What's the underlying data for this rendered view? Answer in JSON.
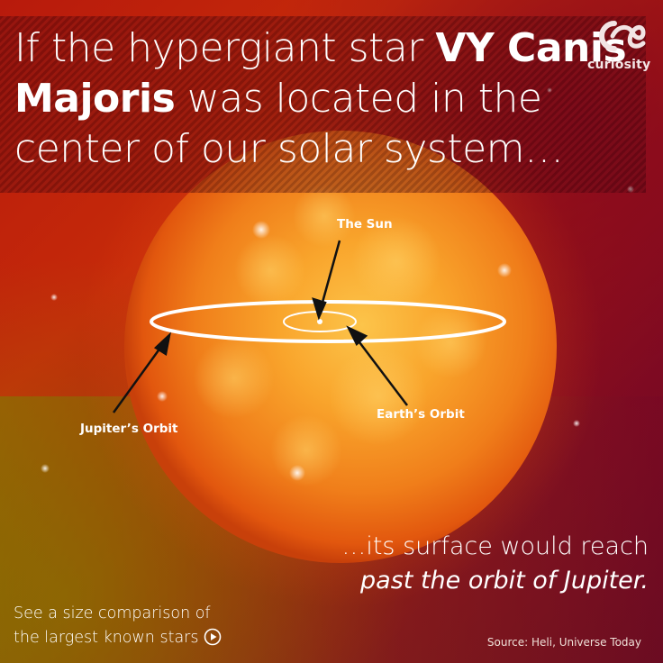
{
  "headline": {
    "part1": "If the hypergiant star ",
    "bold1": "VY Canis Majoris",
    "part2": " was located in the center of our solar system…"
  },
  "logo": {
    "text": "curiosity",
    "icon": "curiosity-logo-icon"
  },
  "diagram_labels": {
    "sun": "The Sun",
    "jupiter_orbit": "Jupiter’s Orbit",
    "earth_orbit": "Earth’s Orbit"
  },
  "conclusion": {
    "line1": "…its surface would reach",
    "line2": "past the orbit of Jupiter."
  },
  "compare_link": {
    "line1": "See a size comparison of",
    "line2": "the largest known stars",
    "icon": "play-circle-icon"
  },
  "source": "Source: Heli, Universe Today",
  "colors": {
    "background_red": "#b81a0c",
    "background_maroon": "#6a0f20",
    "star_core": "#f9b132",
    "star_edge": "#e0520c"
  }
}
